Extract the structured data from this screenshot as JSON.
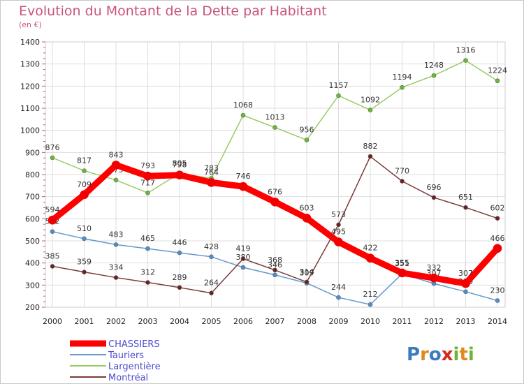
{
  "colors": {
    "title": "#c9547a",
    "axis": "#dddddd",
    "grid": "#dddddd",
    "tick_marks": "#c9547a"
  },
  "chart_data": {
    "type": "line",
    "title": "Evolution du Montant de la Dette par Habitant",
    "subtitle": "(en €)",
    "xlabel": "",
    "ylabel": "",
    "x": [
      "2000",
      "2001",
      "2002",
      "2003",
      "2004",
      "2005",
      "2006",
      "2007",
      "2008",
      "2009",
      "2010",
      "2011",
      "2012",
      "2013",
      "2014"
    ],
    "ylim": [
      200,
      1400
    ],
    "yticks": [
      200,
      300,
      400,
      500,
      600,
      700,
      800,
      900,
      1000,
      1100,
      1200,
      1300,
      1400
    ],
    "grid": true,
    "legend": "bottom-left",
    "series": [
      {
        "name": "Largentière",
        "color": "#99cc66",
        "marker": "#66bb33",
        "width": 1.5,
        "values": [
          876,
          817,
          775,
          717,
          805,
          783,
          1068,
          1013,
          956,
          1157,
          1092,
          1194,
          1248,
          1316,
          1224
        ]
      },
      {
        "name": "Tauriers",
        "color": "#6699cc",
        "marker": "#4a90d0",
        "width": 1.5,
        "values": [
          542,
          510,
          483,
          465,
          446,
          428,
          380,
          346,
          309,
          244,
          212,
          351,
          307,
          270,
          230
        ]
      },
      {
        "name": "Montréal",
        "color": "#7a3a3a",
        "marker": "#6b2020",
        "width": 1.5,
        "values": [
          385,
          359,
          334,
          312,
          289,
          264,
          419,
          368,
          314,
          573,
          882,
          770,
          696,
          651,
          602
        ]
      },
      {
        "name": "CHASSIERS",
        "color": "#ff0000",
        "marker": "#ee0000",
        "width": 9,
        "values": [
          594,
          709,
          843,
          793,
          798,
          764,
          746,
          676,
          603,
          495,
          422,
          355,
          332,
          307,
          466
        ]
      }
    ],
    "legend_order": [
      "CHASSIERS",
      "Tauriers",
      "Largentière",
      "Montréal"
    ]
  },
  "legend": {
    "items": [
      {
        "label": "CHASSIERS",
        "color": "#ff0000",
        "text_color": "#4a4ad0"
      },
      {
        "label": "Tauriers",
        "color": "#6699cc",
        "text_color": "#4a4ad0"
      },
      {
        "label": "Largentière",
        "color": "#99cc66",
        "text_color": "#4a4ad0"
      },
      {
        "label": "Montréal",
        "color": "#7a3a3a",
        "text_color": "#4a4ad0"
      }
    ]
  },
  "logo": {
    "letters": [
      {
        "ch": "P",
        "color": "#3b7bbf"
      },
      {
        "ch": "r",
        "color": "#e08a1e"
      },
      {
        "ch": "o",
        "color": "#3b7bbf"
      },
      {
        "ch": "x",
        "color": "#d8281b"
      },
      {
        "ch": "i",
        "color": "#6fb23a"
      },
      {
        "ch": "t",
        "color": "#e08a1e"
      },
      {
        "ch": "i",
        "color": "#6fb23a"
      }
    ]
  }
}
